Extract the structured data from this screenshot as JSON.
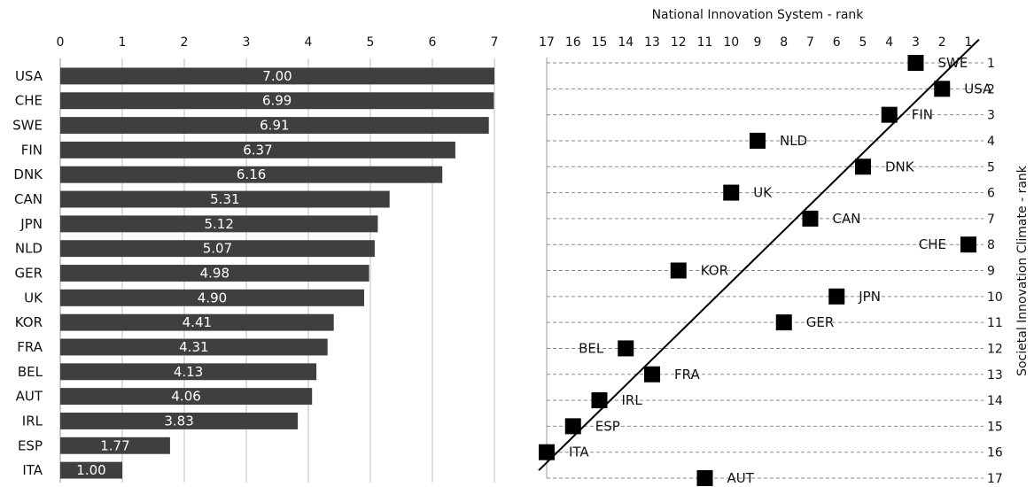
{
  "chart_data": [
    {
      "type": "bar",
      "orientation": "horizontal",
      "title": "",
      "xlabel": "",
      "ylabel": "",
      "xlim": [
        0,
        7
      ],
      "x_ticks": [
        "0",
        "1",
        "2",
        "3",
        "4",
        "5",
        "6",
        "7"
      ],
      "x_axis_position": "top",
      "grid": "vertical",
      "bar_color": "#3f3f3f",
      "categories": [
        "USA",
        "CHE",
        "SWE",
        "FIN",
        "DNK",
        "CAN",
        "JPN",
        "NLD",
        "GER",
        "UK",
        "KOR",
        "FRA",
        "BEL",
        "AUT",
        "IRL",
        "ESP",
        "ITA"
      ],
      "values": [
        7.0,
        6.99,
        6.91,
        6.37,
        6.16,
        5.31,
        5.12,
        5.07,
        4.98,
        4.9,
        4.41,
        4.31,
        4.13,
        4.06,
        3.83,
        1.77,
        1.0
      ],
      "data_labels": [
        "7.00",
        "6.99",
        "6.91",
        "6.37",
        "6.16",
        "5.31",
        "5.12",
        "5.07",
        "4.98",
        "4.90",
        "4.41",
        "4.31",
        "4.13",
        "4.06",
        "3.83",
        "1.77",
        "1.00"
      ]
    },
    {
      "type": "scatter",
      "title": "",
      "xlabel": "National Innovation System - rank",
      "ylabel": "Societal Innovation Climate - rank",
      "xlim": [
        17,
        1
      ],
      "ylim": [
        17,
        1
      ],
      "x_reversed": true,
      "y_reversed": true,
      "x_ticks": [
        "17",
        "16",
        "15",
        "14",
        "13",
        "12",
        "11",
        "10",
        "9",
        "8",
        "7",
        "6",
        "5",
        "4",
        "3",
        "2",
        "1"
      ],
      "y_ticks": [
        "1",
        "2",
        "3",
        "4",
        "5",
        "6",
        "7",
        "8",
        "9",
        "10",
        "11",
        "12",
        "13",
        "14",
        "15",
        "16",
        "17"
      ],
      "x_axis_position": "top",
      "y_axis_position": "right",
      "grid": "horizontal-dashed",
      "marker": "square",
      "marker_color": "#000000",
      "trendline": {
        "from": [
          17.3,
          16.7
        ],
        "to": [
          0.6,
          0.1
        ]
      },
      "points": [
        {
          "label": "SWE",
          "x": 3,
          "y": 1
        },
        {
          "label": "USA",
          "x": 2,
          "y": 2
        },
        {
          "label": "FIN",
          "x": 4,
          "y": 3
        },
        {
          "label": "NLD",
          "x": 9,
          "y": 4
        },
        {
          "label": "DNK",
          "x": 5,
          "y": 5
        },
        {
          "label": "UK",
          "x": 10,
          "y": 6
        },
        {
          "label": "CAN",
          "x": 7,
          "y": 7
        },
        {
          "label": "CHE",
          "x": 1,
          "y": 8
        },
        {
          "label": "KOR",
          "x": 12,
          "y": 9
        },
        {
          "label": "JPN",
          "x": 6,
          "y": 10
        },
        {
          "label": "GER",
          "x": 8,
          "y": 11
        },
        {
          "label": "BEL",
          "x": 14,
          "y": 12
        },
        {
          "label": "FRA",
          "x": 13,
          "y": 13
        },
        {
          "label": "IRL",
          "x": 15,
          "y": 14
        },
        {
          "label": "ESP",
          "x": 16,
          "y": 15
        },
        {
          "label": "ITA",
          "x": 17,
          "y": 16
        },
        {
          "label": "AUT",
          "x": 11,
          "y": 17
        }
      ]
    }
  ]
}
